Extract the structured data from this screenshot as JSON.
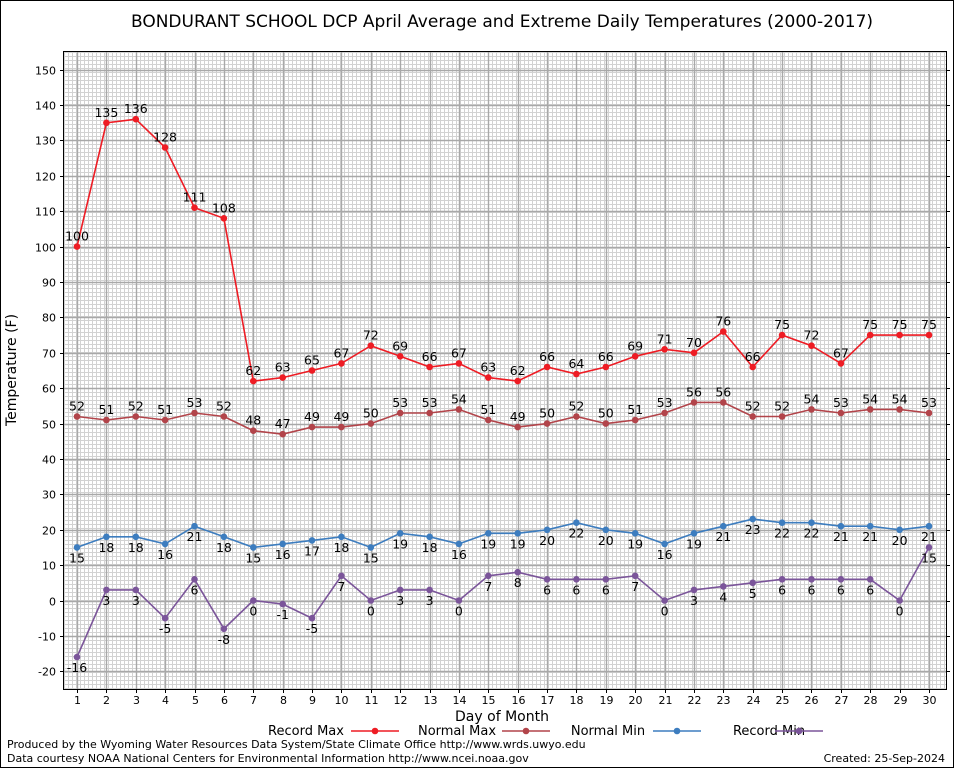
{
  "chart_data": {
    "type": "line",
    "title": "BONDURANT SCHOOL DCP April Average and Extreme Daily Temperatures (2000-2017)",
    "xlabel": "Day of Month",
    "ylabel": "Temperature (F)",
    "x": [
      1,
      2,
      3,
      4,
      5,
      6,
      7,
      8,
      9,
      10,
      11,
      12,
      13,
      14,
      15,
      16,
      17,
      18,
      19,
      20,
      21,
      22,
      23,
      24,
      25,
      26,
      27,
      28,
      29,
      30
    ],
    "xlim": [
      1,
      30
    ],
    "ylim": [
      -25,
      155
    ],
    "yticks": [
      -20,
      -10,
      0,
      10,
      20,
      30,
      40,
      50,
      60,
      70,
      80,
      90,
      100,
      110,
      120,
      130,
      140,
      150
    ],
    "grid": true,
    "legend_position": "bottom",
    "series": [
      {
        "name": "Record Max",
        "color": "#ee1c24",
        "label_side": "above",
        "values": [
          100,
          135,
          136,
          128,
          111,
          108,
          62,
          63,
          65,
          67,
          72,
          69,
          66,
          67,
          63,
          62,
          66,
          64,
          66,
          69,
          71,
          70,
          76,
          66,
          75,
          72,
          67,
          75,
          75,
          75
        ]
      },
      {
        "name": "Normal Max",
        "color": "#b2444a",
        "label_side": "above",
        "values": [
          52,
          51,
          52,
          51,
          53,
          52,
          48,
          47,
          49,
          49,
          50,
          53,
          53,
          54,
          51,
          49,
          50,
          52,
          50,
          51,
          53,
          56,
          56,
          52,
          52,
          54,
          53,
          54,
          54,
          53
        ]
      },
      {
        "name": "Normal Min",
        "color": "#3d7dbf",
        "label_side": "below",
        "values": [
          15,
          18,
          18,
          16,
          21,
          18,
          15,
          16,
          17,
          18,
          15,
          19,
          18,
          16,
          19,
          19,
          20,
          22,
          20,
          19,
          16,
          19,
          21,
          23,
          22,
          22,
          21,
          21,
          20,
          21
        ]
      },
      {
        "name": "Record Min",
        "color": "#7b559a",
        "label_side": "below",
        "values": [
          -16,
          3,
          3,
          -5,
          6,
          -8,
          0,
          -1,
          -5,
          7,
          0,
          3,
          3,
          0,
          7,
          8,
          6,
          6,
          6,
          7,
          0,
          3,
          4,
          5,
          6,
          6,
          6,
          6,
          0,
          15
        ]
      }
    ]
  },
  "footer": {
    "produced_by": "Produced by the Wyoming Water Resources Data System/State Climate Office http://www.wrds.uwyo.edu",
    "data_courtesy": "Data courtesy NOAA National Centers for Environmental Information http://www.ncei.noaa.gov",
    "created": "Created:  25-Sep-2024"
  }
}
